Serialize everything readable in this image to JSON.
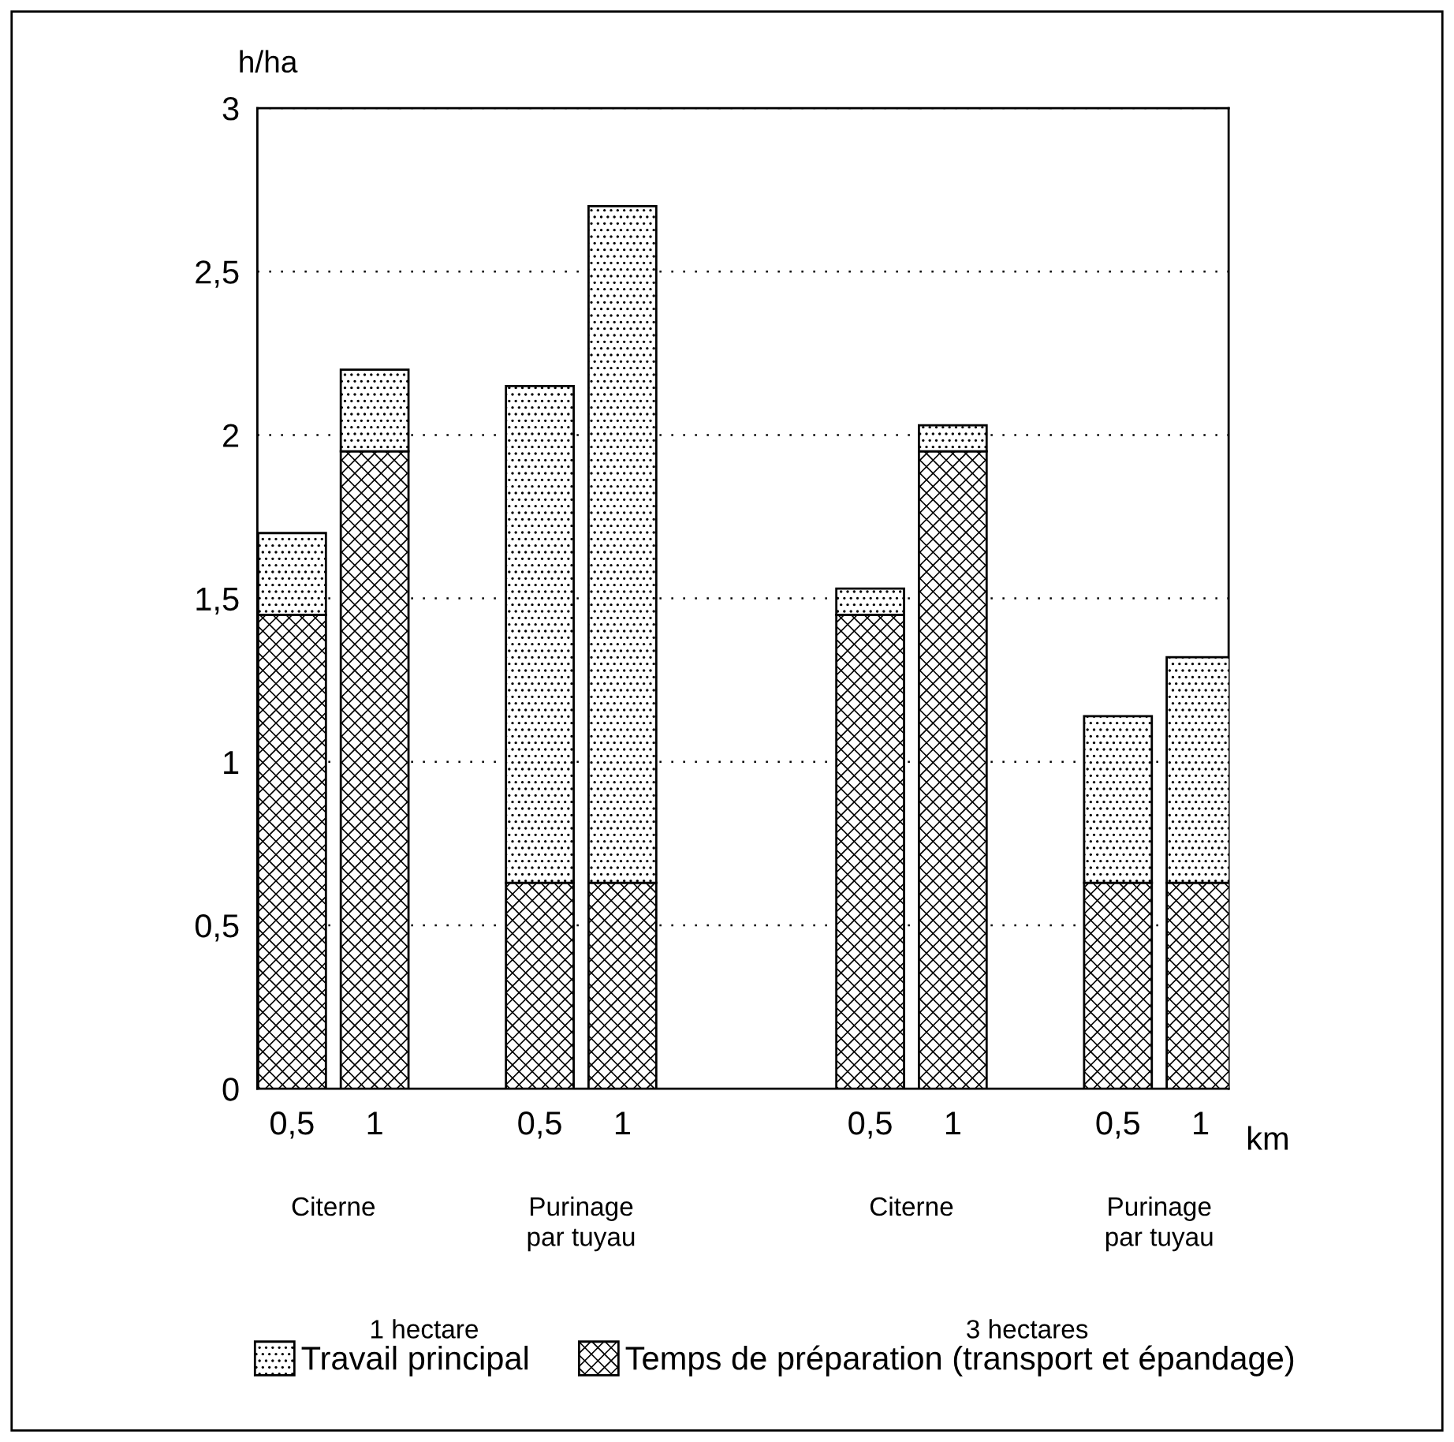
{
  "chart_data": {
    "type": "bar",
    "stacked": true,
    "ylabel": "h/ha",
    "categories": [
      "0,5",
      "1",
      null,
      "0,5",
      "1",
      null,
      null,
      "0,5",
      "1",
      null,
      "0,5",
      "1"
    ],
    "series": [
      {
        "name": "Temps de préparation (transport et épandage)",
        "color": "#000000",
        "values": [
          1.45,
          1.95,
          null,
          0.63,
          0.63,
          null,
          null,
          1.45,
          1.95,
          null,
          0.63,
          0.63
        ]
      },
      {
        "name": "Travail principal",
        "color": "#000000",
        "values": [
          0.25,
          0.25,
          null,
          1.52,
          2.07,
          null,
          null,
          0.08,
          0.08,
          null,
          0.51,
          0.69
        ]
      }
    ],
    "ylim": [
      0,
      3
    ],
    "yticks": [
      0,
      {
        "value": 0.5,
        "label": "0,5"
      },
      1,
      {
        "value": 1.5,
        "label": "1,5"
      },
      2,
      {
        "value": 2.5,
        "label": "2,5"
      },
      3
    ],
    "grid": "y",
    "legend": "bottom",
    "annotations": [
      "km",
      "Citerne",
      "Purinage\npar tuyau",
      "Citerne",
      "Purinage\npar tuyau",
      "1 hectare",
      "3 hectares"
    ]
  }
}
